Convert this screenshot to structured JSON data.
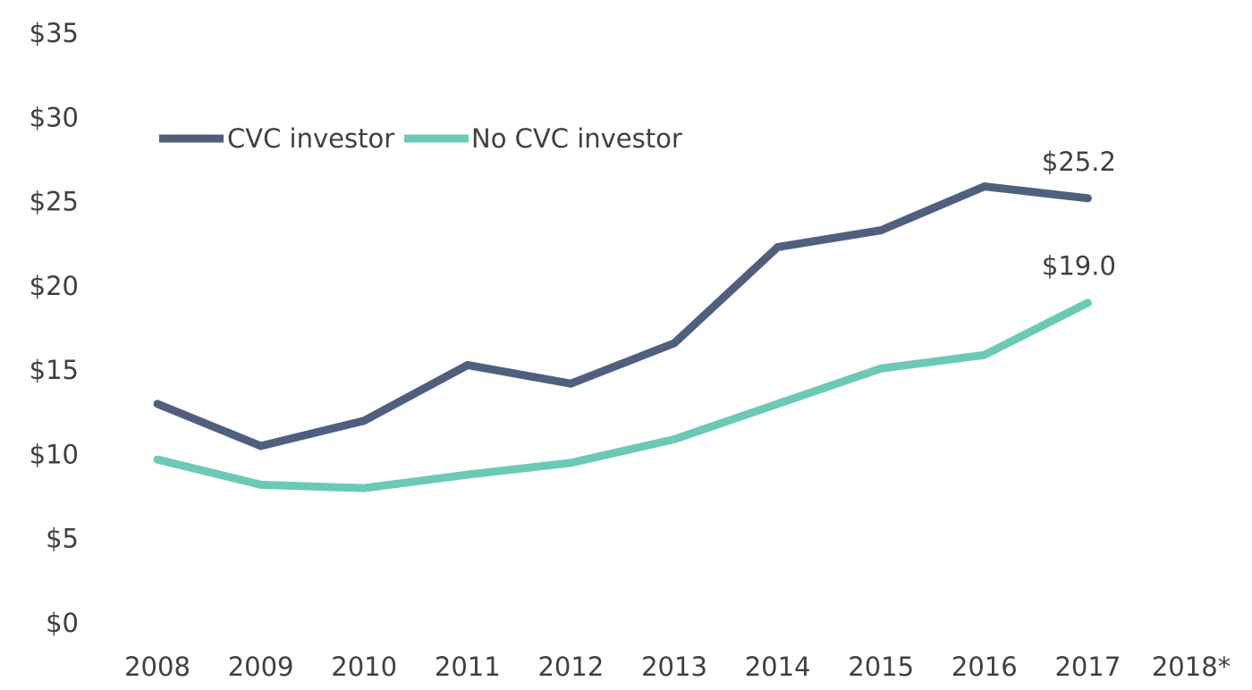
{
  "chart_data": {
    "type": "line",
    "title": "",
    "xlabel": "",
    "ylabel": "",
    "categories": [
      "2008",
      "2009",
      "2010",
      "2011",
      "2012",
      "2013",
      "2014",
      "2015",
      "2016",
      "2017",
      "2018*"
    ],
    "ylim": [
      0,
      35
    ],
    "yticks": [
      0,
      5,
      10,
      15,
      20,
      25,
      30,
      35
    ],
    "ytick_labels": [
      "$0",
      "$5",
      "$10",
      "$15",
      "$20",
      "$25",
      "$30",
      "$35"
    ],
    "grid": false,
    "legend_position": "top-left",
    "series": [
      {
        "name": "CVC investor",
        "color": "#4f607f",
        "values": [
          13.0,
          10.5,
          12.0,
          15.3,
          14.2,
          16.6,
          22.3,
          23.3,
          25.9,
          25.2,
          null
        ],
        "labels": [
          null,
          null,
          null,
          null,
          null,
          null,
          null,
          null,
          null,
          "$25.2",
          null
        ]
      },
      {
        "name": "No CVC investor",
        "color": "#6cc9b8",
        "values": [
          9.7,
          8.2,
          8.0,
          8.8,
          9.5,
          10.9,
          13.0,
          15.1,
          15.9,
          19.0,
          null
        ],
        "labels": [
          null,
          null,
          null,
          null,
          null,
          null,
          null,
          null,
          null,
          "$19.0",
          null
        ]
      }
    ]
  }
}
